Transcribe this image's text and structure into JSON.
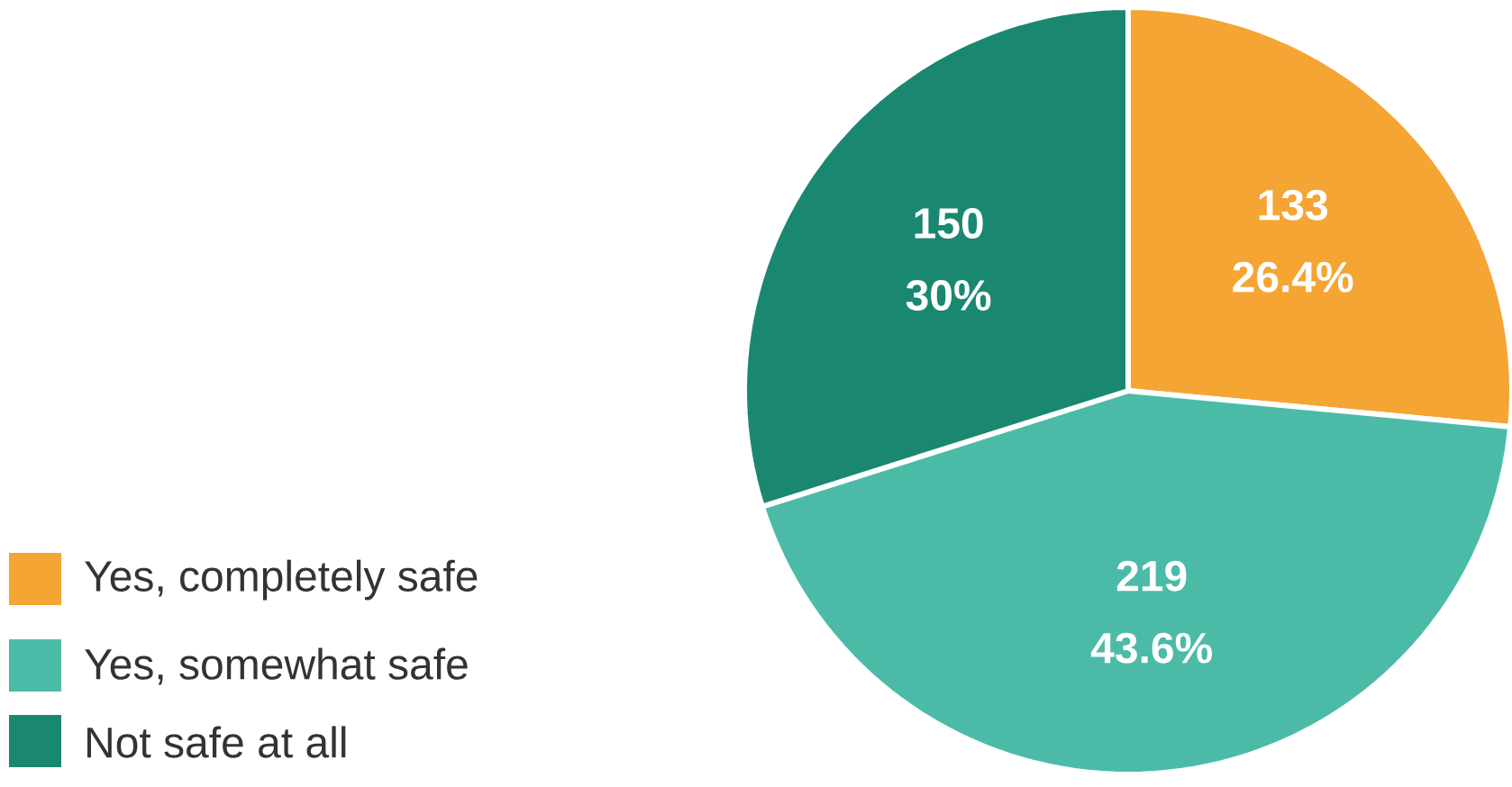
{
  "chart_data": {
    "type": "pie",
    "categories": [
      "Yes, completely safe",
      "Yes, somewhat safe",
      "Not safe at all"
    ],
    "values": [
      133,
      219,
      150
    ],
    "colors": [
      "#f4a533",
      "#4bbba8",
      "#1a8870"
    ],
    "value_labels": [
      "133 26.4%",
      "219 43.6%",
      "150 30%"
    ],
    "legend": "bottom left"
  }
}
